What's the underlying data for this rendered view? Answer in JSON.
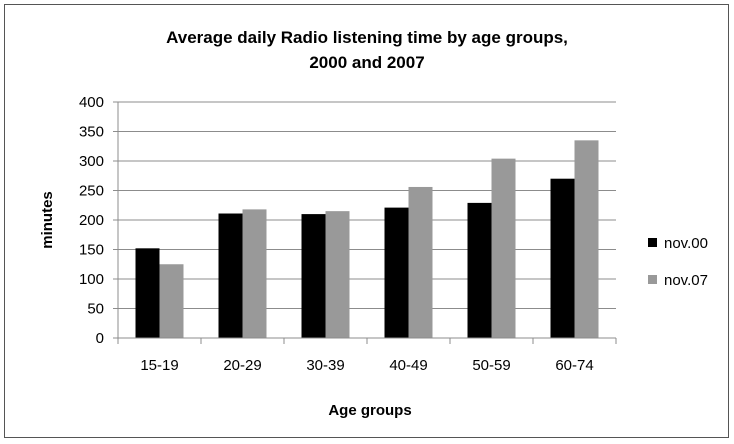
{
  "chart_data": {
    "type": "bar",
    "title_line1": "Average daily  Radio listening time by age groups,",
    "title_line2": "2000 and 2007",
    "xlabel": "Age groups",
    "ylabel": "minutes",
    "categories": [
      "15-19",
      "20-29",
      "30-39",
      "40-49",
      "50-59",
      "60-74"
    ],
    "series": [
      {
        "name": "nov.00",
        "color": "#000000",
        "values": [
          152,
          211,
          210,
          221,
          229,
          270
        ]
      },
      {
        "name": "nov.07",
        "color": "#999999",
        "values": [
          125,
          218,
          215,
          256,
          304,
          335
        ]
      }
    ],
    "ylim": [
      0,
      400
    ],
    "yticks": [
      0,
      50,
      100,
      150,
      200,
      250,
      300,
      350,
      400
    ],
    "grid": true,
    "legend_position": "right"
  }
}
